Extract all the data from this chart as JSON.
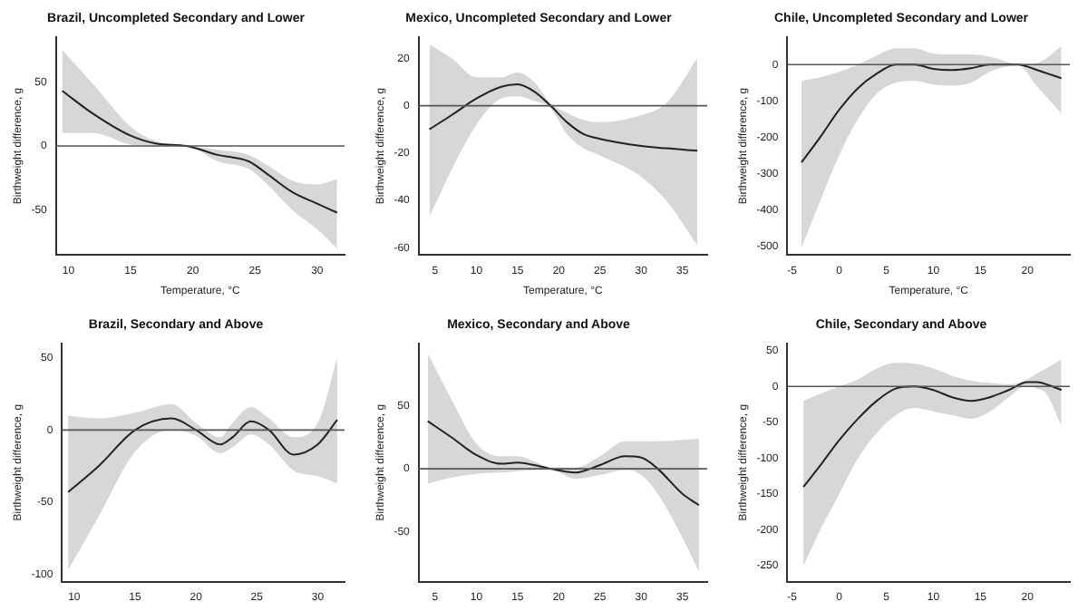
{
  "chart_data": [
    {
      "type": "line",
      "title": "Brazil, Uncompleted Secondary and Lower",
      "xlabel": "Temperature, °C",
      "ylabel": "Birthweight difference, g",
      "xlim": [
        9,
        32.2
      ],
      "ylim": [
        -85,
        85
      ],
      "xticks": [
        10,
        15,
        20,
        25,
        30
      ],
      "yticks": [
        -50,
        0,
        50
      ],
      "grid": false,
      "legend": false,
      "ref_lines": [
        {
          "axis": "y",
          "value": 0,
          "color": "#555555"
        }
      ],
      "series": [
        {
          "color": "#222222",
          "x": [
            9.5,
            12,
            15,
            17,
            19.5,
            22,
            24.5,
            26,
            28,
            30,
            31.6
          ],
          "values": [
            43,
            25,
            8,
            2,
            0,
            -7,
            -12,
            -22,
            -36,
            -45,
            -52
          ],
          "upper": [
            75,
            48,
            15,
            4,
            0,
            -3,
            -7,
            -15,
            -27,
            -30,
            -26
          ],
          "lower": [
            10,
            10,
            1,
            0,
            0,
            -12,
            -18,
            -30,
            -50,
            -65,
            -80
          ]
        }
      ]
    },
    {
      "type": "line",
      "title": "Mexico, Uncompleted Secondary and Lower",
      "xlabel": "Temperature, °C",
      "ylabel": "Birthweight difference, g",
      "xlim": [
        3,
        38
      ],
      "ylim": [
        -63,
        29
      ],
      "xticks": [
        5,
        10,
        15,
        20,
        25,
        30,
        35
      ],
      "yticks": [
        -60,
        -40,
        -20,
        0,
        20
      ],
      "grid": false,
      "legend": false,
      "ref_lines": [
        {
          "axis": "y",
          "value": 0,
          "color": "#555555"
        }
      ],
      "series": [
        {
          "color": "#222222",
          "x": [
            4.3,
            7,
            10,
            13,
            15,
            17,
            19,
            21,
            23,
            25,
            30,
            33,
            36.8
          ],
          "values": [
            -10,
            -4,
            3,
            8,
            9,
            6,
            0,
            -7,
            -12,
            -14,
            -17,
            -18,
            -19
          ],
          "upper": [
            26,
            20,
            12,
            12,
            14,
            10,
            1,
            -3,
            -6,
            -7,
            -4,
            1,
            20
          ],
          "lower": [
            -47,
            -27,
            -8,
            3,
            4,
            2,
            -1,
            -12,
            -18,
            -21,
            -30,
            -40,
            -59
          ]
        }
      ]
    },
    {
      "type": "line",
      "title": "Chile, Uncompleted Secondary and Lower",
      "xlabel": "Temperature, °C",
      "ylabel": "Birthweight difference, g",
      "xlim": [
        -5.5,
        24.5
      ],
      "ylim": [
        -525,
        76
      ],
      "xticks": [
        -5,
        0,
        5,
        10,
        15,
        20
      ],
      "yticks": [
        -500,
        -400,
        -300,
        -200,
        -100,
        0
      ],
      "grid": false,
      "legend": false,
      "ref_lines": [
        {
          "axis": "y",
          "value": 0,
          "color": "#555555"
        }
      ],
      "series": [
        {
          "color": "#222222",
          "x": [
            -4,
            -2,
            0,
            2,
            4,
            6,
            8,
            10,
            12,
            14,
            16,
            19,
            21,
            23.6
          ],
          "values": [
            -270,
            -200,
            -125,
            -65,
            -25,
            0,
            0,
            -12,
            -15,
            -10,
            0,
            0,
            -15,
            -38
          ],
          "upper": [
            -45,
            -35,
            -20,
            0,
            25,
            45,
            45,
            30,
            28,
            28,
            22,
            2,
            5,
            50
          ],
          "lower": [
            -505,
            -375,
            -250,
            -150,
            -80,
            -50,
            -45,
            -55,
            -58,
            -50,
            -20,
            -2,
            -60,
            -135
          ]
        }
      ]
    },
    {
      "type": "line",
      "title": "Brazil, Secondary and Above",
      "ylabel": "Birthweight difference, g",
      "xlim": [
        9,
        32.2
      ],
      "ylim": [
        -105,
        60
      ],
      "xticks": [
        10,
        15,
        20,
        25,
        30
      ],
      "yticks": [
        -100,
        -50,
        0,
        50
      ],
      "grid": false,
      "legend": false,
      "ref_lines": [
        {
          "axis": "y",
          "value": 0,
          "color": "#555555"
        }
      ],
      "series": [
        {
          "color": "#222222",
          "x": [
            9.5,
            12,
            15,
            18,
            20,
            22,
            23,
            24.5,
            26,
            28,
            30,
            31.6
          ],
          "values": [
            -43,
            -25,
            0,
            8,
            0,
            -10,
            -5,
            6,
            0,
            -17,
            -10,
            7
          ],
          "upper": [
            10,
            8,
            12,
            18,
            5,
            -5,
            5,
            16,
            8,
            -5,
            5,
            50
          ],
          "lower": [
            -97,
            -60,
            -15,
            0,
            -4,
            -16,
            -12,
            -3,
            -10,
            -28,
            -32,
            -37
          ]
        }
      ]
    },
    {
      "type": "line",
      "title": "Mexico, Secondary and Above",
      "ylabel": "Birthweight difference, g",
      "xlim": [
        3,
        38
      ],
      "ylim": [
        -90,
        100
      ],
      "xticks": [
        5,
        10,
        15,
        20,
        25,
        30,
        35
      ],
      "yticks": [
        -50,
        0,
        50
      ],
      "grid": false,
      "legend": false,
      "ref_lines": [
        {
          "axis": "y",
          "value": 0,
          "color": "#555555"
        }
      ],
      "series": [
        {
          "color": "#222222",
          "x": [
            4.1,
            7,
            10,
            13,
            15,
            17,
            19,
            22,
            25,
            28,
            30,
            32,
            35,
            37
          ],
          "values": [
            38,
            25,
            11,
            4,
            5,
            3,
            0,
            -3,
            3,
            10,
            9,
            0,
            -20,
            -29
          ],
          "upper": [
            92,
            55,
            20,
            10,
            10,
            6,
            1,
            1,
            10,
            22,
            22,
            22,
            23,
            24
          ],
          "lower": [
            -12,
            -7,
            -4,
            -3,
            -2,
            -1,
            -1,
            -8,
            -5,
            -1,
            -5,
            -20,
            -55,
            -82
          ]
        }
      ]
    },
    {
      "type": "line",
      "title": "Chile, Secondary and Above",
      "ylabel": "Birthweight difference, g",
      "xlim": [
        -5.5,
        24.5
      ],
      "ylim": [
        -272,
        60
      ],
      "xticks": [
        -5,
        0,
        5,
        10,
        15,
        20
      ],
      "yticks": [
        -250,
        -200,
        -150,
        -100,
        -50,
        0,
        50
      ],
      "grid": false,
      "legend": false,
      "ref_lines": [
        {
          "axis": "y",
          "value": 0,
          "color": "#555555"
        }
      ],
      "series": [
        {
          "color": "#222222",
          "x": [
            -3.8,
            -2,
            0,
            2,
            4,
            6,
            8,
            10,
            12,
            14,
            16,
            18,
            20,
            21,
            22,
            23.6
          ],
          "values": [
            -140,
            -110,
            -75,
            -45,
            -20,
            -3,
            0,
            -5,
            -15,
            -20,
            -15,
            -5,
            6,
            6,
            3,
            -5
          ],
          "upper": [
            -20,
            -10,
            0,
            10,
            25,
            33,
            32,
            25,
            15,
            8,
            5,
            3,
            10,
            18,
            25,
            38
          ],
          "lower": [
            -250,
            -200,
            -150,
            -100,
            -65,
            -40,
            -30,
            -35,
            -40,
            -45,
            -35,
            -15,
            1,
            -3,
            -10,
            -55
          ]
        }
      ]
    }
  ]
}
